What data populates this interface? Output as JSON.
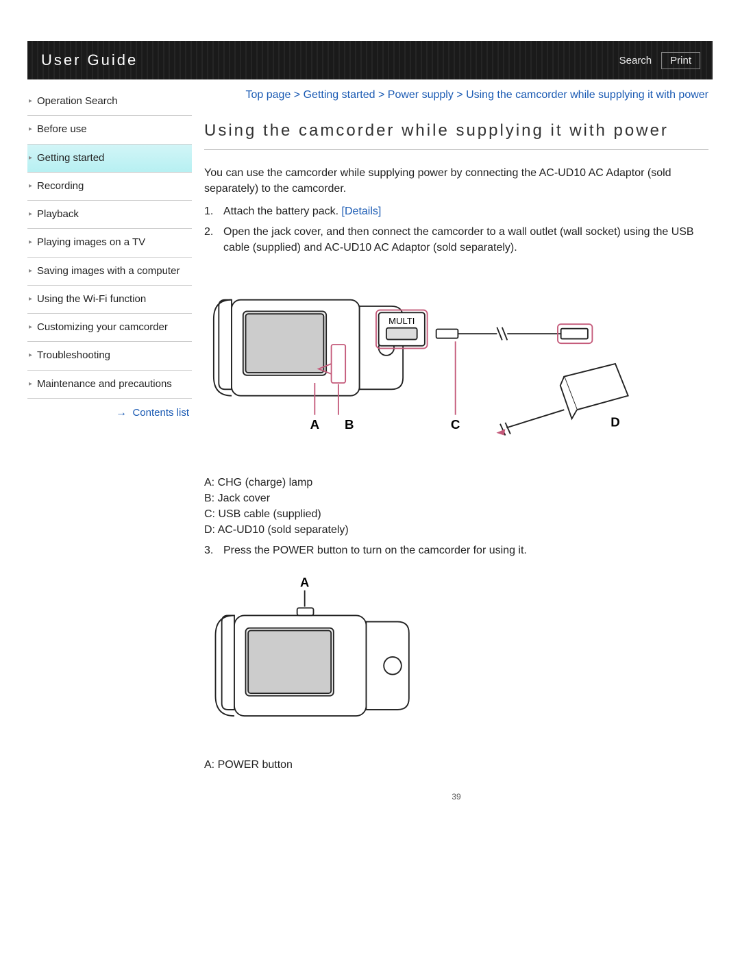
{
  "header": {
    "title": "User Guide",
    "search_label": "Search",
    "print_label": "Print"
  },
  "sidebar": {
    "items": [
      {
        "label": "Operation Search",
        "active": false
      },
      {
        "label": "Before use",
        "active": false
      },
      {
        "label": "Getting started",
        "active": true
      },
      {
        "label": "Recording",
        "active": false
      },
      {
        "label": "Playback",
        "active": false
      },
      {
        "label": "Playing images on a TV",
        "active": false
      },
      {
        "label": "Saving images with a computer",
        "active": false
      },
      {
        "label": "Using the Wi-Fi function",
        "active": false
      },
      {
        "label": "Customizing your camcorder",
        "active": false
      },
      {
        "label": "Troubleshooting",
        "active": false
      },
      {
        "label": "Maintenance and precautions",
        "active": false
      }
    ],
    "contents_list_label": "Contents list"
  },
  "breadcrumb": {
    "segments": [
      "Top page",
      "Getting started",
      "Power supply",
      "Using the camcorder while supplying it with power"
    ],
    "separator": " > "
  },
  "article": {
    "title": "Using the camcorder while supplying it with power",
    "intro": "You can use the camcorder while supplying power by connecting the AC-UD10 AC Adaptor (sold separately) to the camcorder.",
    "steps": [
      {
        "num": "1.",
        "text": "Attach the battery pack.",
        "details_label": "[Details]"
      },
      {
        "num": "2.",
        "text": "Open the jack cover, and then connect the camcorder to a wall outlet (wall socket) using the USB cable (supplied) and AC-UD10 AC Adaptor (sold separately)."
      },
      {
        "num": "3.",
        "text": "Press the POWER button to turn on the camcorder for using it."
      }
    ],
    "figure1": {
      "port_label": "MULTI",
      "callouts": [
        "A",
        "B",
        "C",
        "D"
      ],
      "legend": [
        "A: CHG (charge) lamp",
        "B: Jack cover",
        "C: USB cable (supplied)",
        "D: AC-UD10 (sold separately)"
      ],
      "colors": {
        "stroke": "#222222",
        "highlight": "#c45a7a",
        "fill": "#ffffff"
      }
    },
    "figure2": {
      "callouts": [
        "A"
      ],
      "legend": [
        "A: POWER button"
      ],
      "colors": {
        "stroke": "#222222",
        "highlight": "#c45a7a",
        "fill": "#ffffff"
      }
    }
  },
  "page_number": "39"
}
